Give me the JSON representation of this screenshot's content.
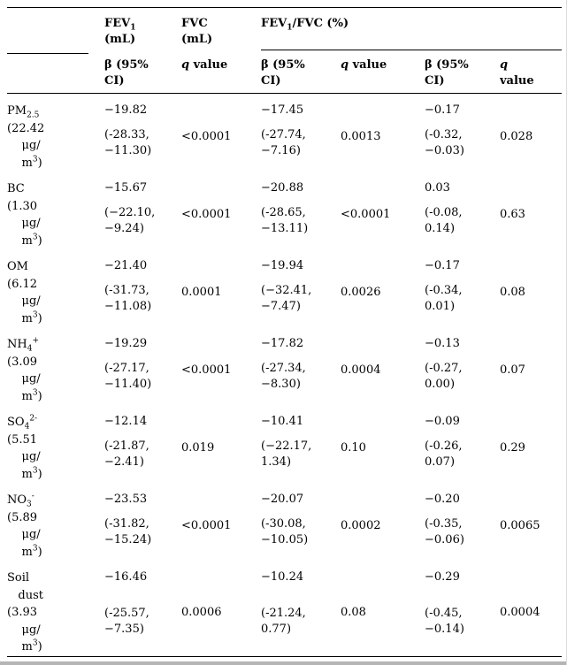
{
  "colors": {
    "text": "#000000",
    "background": "#ffffff",
    "rule": "#000000"
  },
  "table": {
    "column_groups": [
      "FEV~1~\n(mL)",
      "FVC\n(mL)",
      "FEV~1~/FVC (%)"
    ],
    "sub_headers": [
      "β (95%\nCI)",
      "*q* value",
      "β (95%\nCI)",
      "*q* value",
      "β (95%\nCI)",
      "*q*\nvalue"
    ],
    "rows": [
      {
        "name": "PM~2.5~\n(22.42\n    μg/\n    m^3^)",
        "groups": [
          {
            "beta": "−19.82",
            "ci": "(-28.33,\n−11.30)",
            "q": "<0.0001"
          },
          {
            "beta": "−17.45",
            "ci": "(-27.74,\n−7.16)",
            "q": "0.0013"
          },
          {
            "beta": "−0.17",
            "ci": "(-0.32,\n−0.03)",
            "q": "0.028"
          }
        ]
      },
      {
        "name": "BC\n(1.30\n    μg/\n    m^3^)",
        "groups": [
          {
            "beta": "−15.67",
            "ci": "(−22.10,\n−9.24)",
            "q": "<0.0001"
          },
          {
            "beta": "−20.88",
            "ci": "(-28.65,\n−13.11)",
            "q": "<0.0001"
          },
          {
            "beta": "0.03",
            "ci": "(-0.08,\n0.14)",
            "q": "0.63"
          }
        ]
      },
      {
        "name": "OM\n(6.12\n    μg/\n    m^3^)",
        "groups": [
          {
            "beta": "−21.40",
            "ci": "(-31.73,\n−11.08)",
            "q": "0.0001"
          },
          {
            "beta": "−19.94",
            "ci": "(−32.41,\n−7.47)",
            "q": "0.0026"
          },
          {
            "beta": "−0.17",
            "ci": "(-0.34,\n0.01)",
            "q": "0.08"
          }
        ]
      },
      {
        "name": "NH~4~^+^\n(3.09\n    μg/\n    m^3^)",
        "groups": [
          {
            "beta": "−19.29",
            "ci": "(-27.17,\n−11.40)",
            "q": "<0.0001"
          },
          {
            "beta": "−17.82",
            "ci": "(-27.34,\n−8.30)",
            "q": "0.0004"
          },
          {
            "beta": "−0.13",
            "ci": "(-0.27,\n0.00)",
            "q": "0.07"
          }
        ]
      },
      {
        "name": "SO~4~^2-^\n(5.51\n    μg/\n    m^3^)",
        "groups": [
          {
            "beta": "−12.14",
            "ci": "(-21.87,\n−2.41)",
            "q": "0.019"
          },
          {
            "beta": "−10.41",
            "ci": "(−22.17,\n1.34)",
            "q": "0.10"
          },
          {
            "beta": "−0.09",
            "ci": "(-0.26,\n0.07)",
            "q": "0.29"
          }
        ]
      },
      {
        "name": "NO~3~^-^\n(5.89\n    μg/\n    m^3^)",
        "groups": [
          {
            "beta": "−23.53",
            "ci": "(-31.82,\n−15.24)",
            "q": "<0.0001"
          },
          {
            "beta": "−20.07",
            "ci": "(-30.08,\n−10.05)",
            "q": "0.0002"
          },
          {
            "beta": "−0.20",
            "ci": "(-0.35,\n−0.06)",
            "q": "0.0065"
          }
        ]
      },
      {
        "name": "Soil\n   dust\n(3.93\n    μg/\n    m^3^)",
        "groups": [
          {
            "beta": "−16.46",
            "ci": "(-25.57,\n−7.35)",
            "q": "0.0006"
          },
          {
            "beta": "−10.24",
            "ci": "(-21.24,\n0.77)",
            "q": "0.08"
          },
          {
            "beta": "−0.29",
            "ci": "(-0.45,\n−0.14)",
            "q": "0.0004"
          }
        ]
      }
    ]
  }
}
